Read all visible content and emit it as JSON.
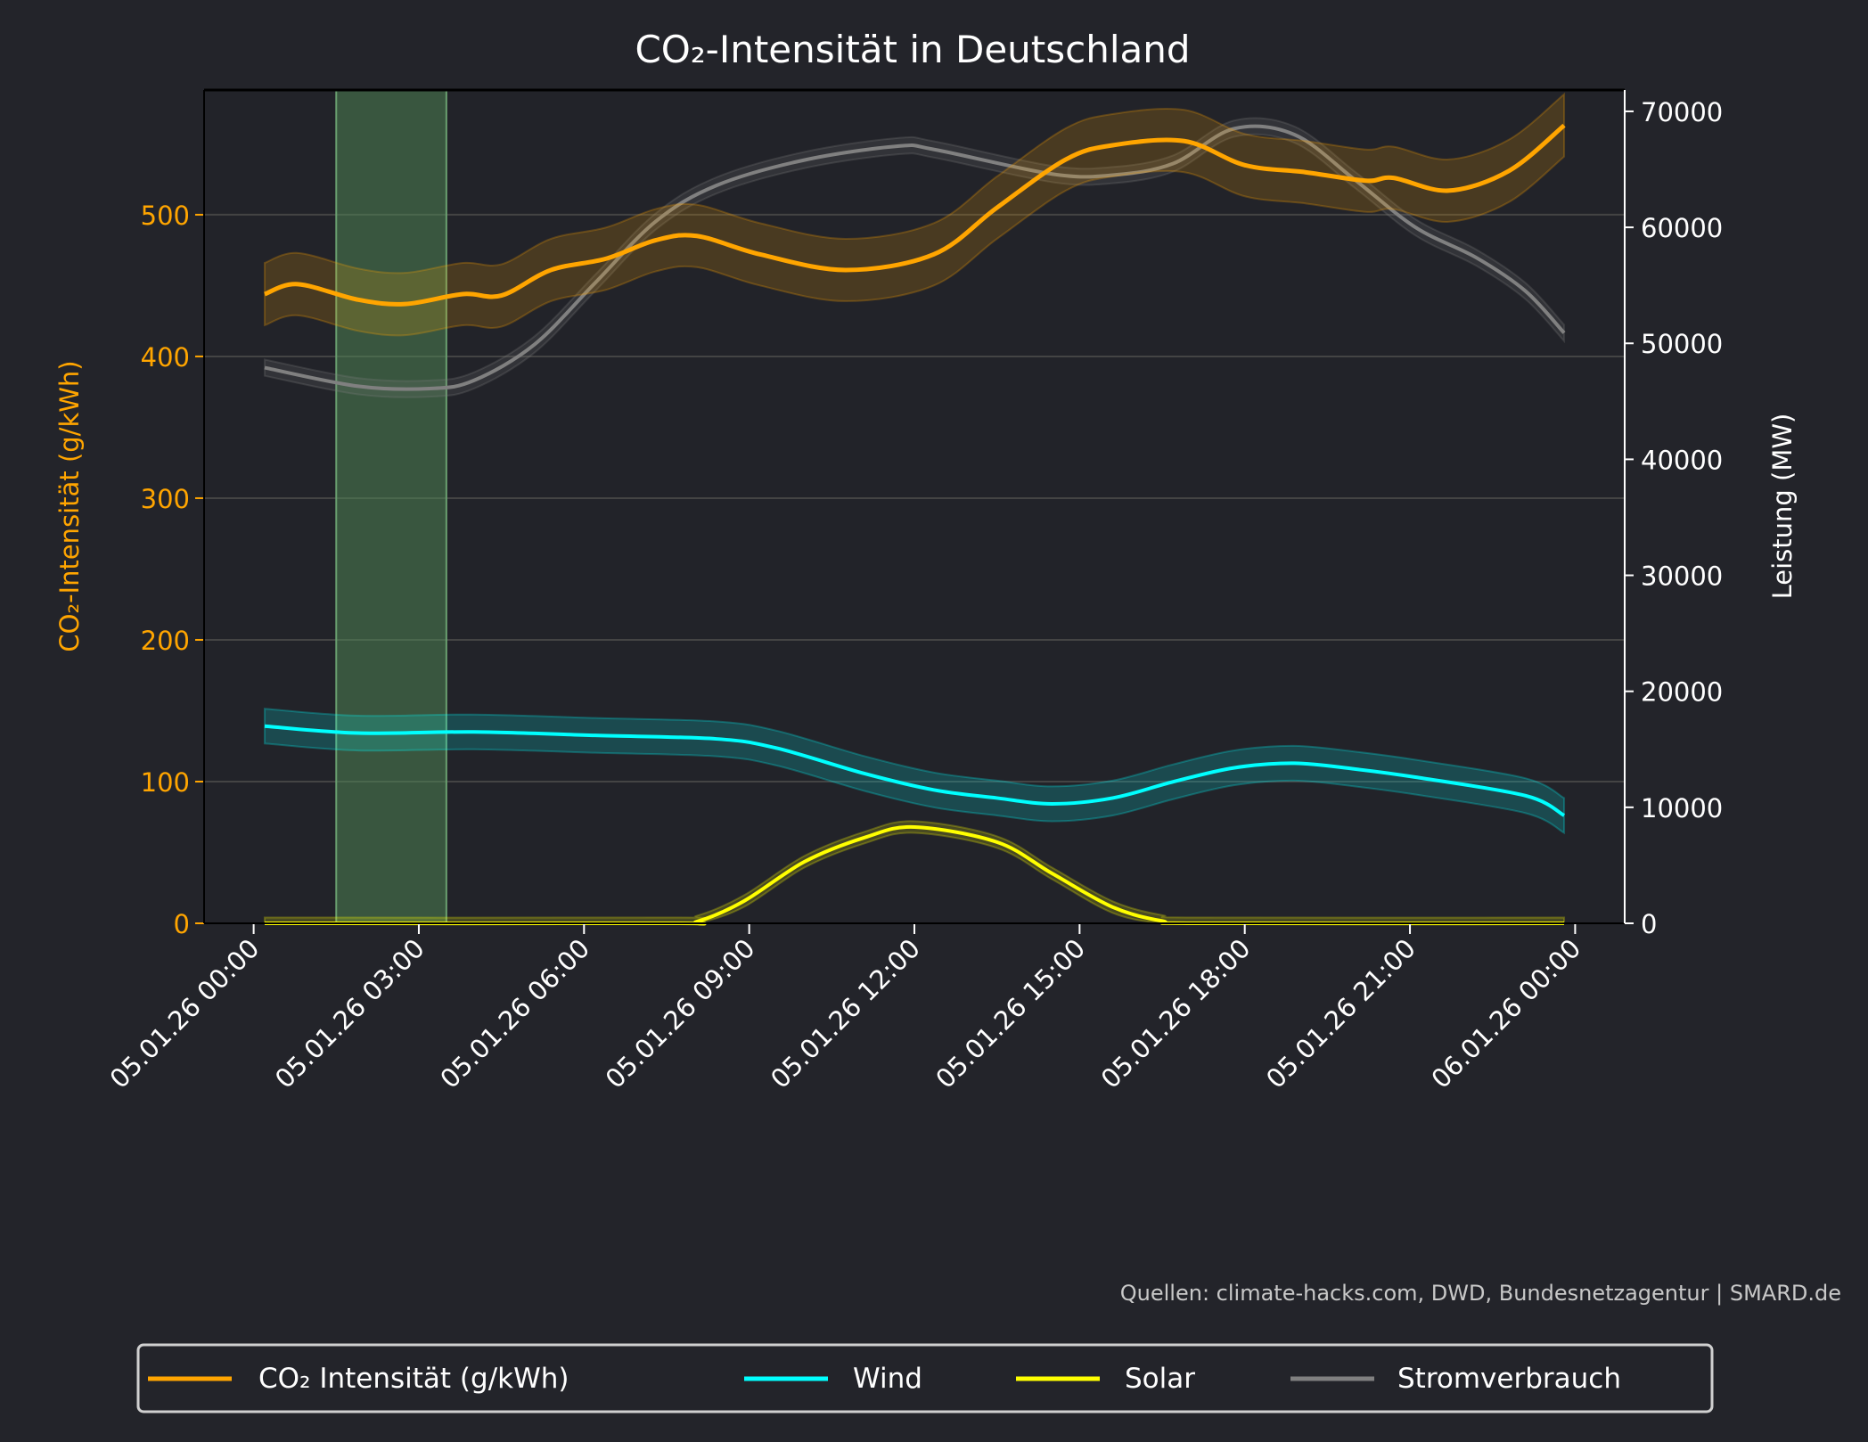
{
  "chart_data": {
    "type": "line",
    "title": "CO₂-Intensität in Deutschland",
    "ylabel_left": "CO₂-Intensität (g/kWh)",
    "ylabel_right": "Leistung (MW)",
    "xlabel": "",
    "ylim_left": [
      0,
      588
    ],
    "ylim_right": [
      0,
      71840
    ],
    "xlim_hours": [
      -0.9,
      24.9
    ],
    "grid": "horizontal",
    "legend_placement": "bottom-center",
    "x_ticks": [
      {
        "hour": 0,
        "label": "05.01.26 00:00"
      },
      {
        "hour": 3,
        "label": "05.01.26 03:00"
      },
      {
        "hour": 6,
        "label": "05.01.26 06:00"
      },
      {
        "hour": 9,
        "label": "05.01.26 09:00"
      },
      {
        "hour": 12,
        "label": "05.01.26 12:00"
      },
      {
        "hour": 15,
        "label": "05.01.26 15:00"
      },
      {
        "hour": 18,
        "label": "05.01.26 18:00"
      },
      {
        "hour": 21,
        "label": "05.01.26 21:00"
      },
      {
        "hour": 24,
        "label": "06.01.26 00:00"
      }
    ],
    "y_ticks_left": [
      0,
      100,
      200,
      300,
      400,
      500
    ],
    "y_ticks_right": [
      0,
      10000,
      20000,
      30000,
      40000,
      50000,
      60000,
      70000
    ],
    "highlight_span_hours": [
      1.5,
      3.5
    ],
    "series": [
      {
        "name": "CO₂ Intensität (g/kWh)",
        "axis": "left",
        "color": "#ffa500",
        "band": 22,
        "points": [
          [
            0.2,
            444
          ],
          [
            0.8,
            451
          ],
          [
            1.9,
            440
          ],
          [
            2.75,
            437
          ],
          [
            3.8,
            444
          ],
          [
            4.5,
            443
          ],
          [
            5.4,
            461
          ],
          [
            6.4,
            469
          ],
          [
            7.3,
            482
          ],
          [
            8.05,
            485
          ],
          [
            9.2,
            472
          ],
          [
            10.75,
            461
          ],
          [
            12.35,
            472
          ],
          [
            13.5,
            505
          ],
          [
            14.75,
            539
          ],
          [
            15.6,
            549
          ],
          [
            16.9,
            552
          ],
          [
            18,
            535
          ],
          [
            19.1,
            530
          ],
          [
            20.2,
            524
          ],
          [
            20.7,
            526
          ],
          [
            21.7,
            517
          ],
          [
            22.8,
            531
          ],
          [
            23.8,
            563
          ]
        ]
      },
      {
        "name": "Wind",
        "axis": "right",
        "color": "#00ffff",
        "band": 1500,
        "points": [
          [
            0.2,
            17000
          ],
          [
            1.9,
            16400
          ],
          [
            4.0,
            16500
          ],
          [
            6.2,
            16200
          ],
          [
            8.4,
            15900
          ],
          [
            9.5,
            15100
          ],
          [
            11.1,
            12900
          ],
          [
            12.35,
            11500
          ],
          [
            13.5,
            10800
          ],
          [
            14.5,
            10300
          ],
          [
            15.6,
            10800
          ],
          [
            16.7,
            12200
          ],
          [
            17.8,
            13400
          ],
          [
            18.9,
            13800
          ],
          [
            20,
            13300
          ],
          [
            21.1,
            12600
          ],
          [
            23.1,
            11000
          ],
          [
            23.8,
            9300
          ]
        ]
      },
      {
        "name": "Solar",
        "axis": "right",
        "color": "#ffff00",
        "band": 500,
        "points": [
          [
            0.2,
            0
          ],
          [
            7.5,
            0
          ],
          [
            8.05,
            150
          ],
          [
            8.9,
            1900
          ],
          [
            10,
            5300
          ],
          [
            11.1,
            7400
          ],
          [
            12,
            8300
          ],
          [
            13.5,
            7000
          ],
          [
            14.5,
            4300
          ],
          [
            15.6,
            1400
          ],
          [
            16.5,
            200
          ],
          [
            17.2,
            0
          ],
          [
            23.8,
            0
          ]
        ]
      },
      {
        "name": "Stromverbrauch",
        "axis": "right",
        "color": "#808080",
        "band": 700,
        "points": [
          [
            0.2,
            47900
          ],
          [
            1.9,
            46300
          ],
          [
            3.2,
            46100
          ],
          [
            4.0,
            46800
          ],
          [
            5.1,
            49900
          ],
          [
            6.2,
            55200
          ],
          [
            7.3,
            60500
          ],
          [
            8.4,
            63600
          ],
          [
            10,
            65800
          ],
          [
            11.7,
            67000
          ],
          [
            12.37,
            66700
          ],
          [
            14.5,
            64600
          ],
          [
            15.6,
            64500
          ],
          [
            16.7,
            65500
          ],
          [
            17.8,
            68500
          ],
          [
            18.9,
            68000
          ],
          [
            20,
            64100
          ],
          [
            21.1,
            60000
          ],
          [
            22.2,
            57400
          ],
          [
            23.1,
            54500
          ],
          [
            23.8,
            50900
          ]
        ]
      }
    ],
    "source_note": "Quellen: climate-hacks.com, DWD, Bundesnetzagentur | SMARD.de"
  }
}
